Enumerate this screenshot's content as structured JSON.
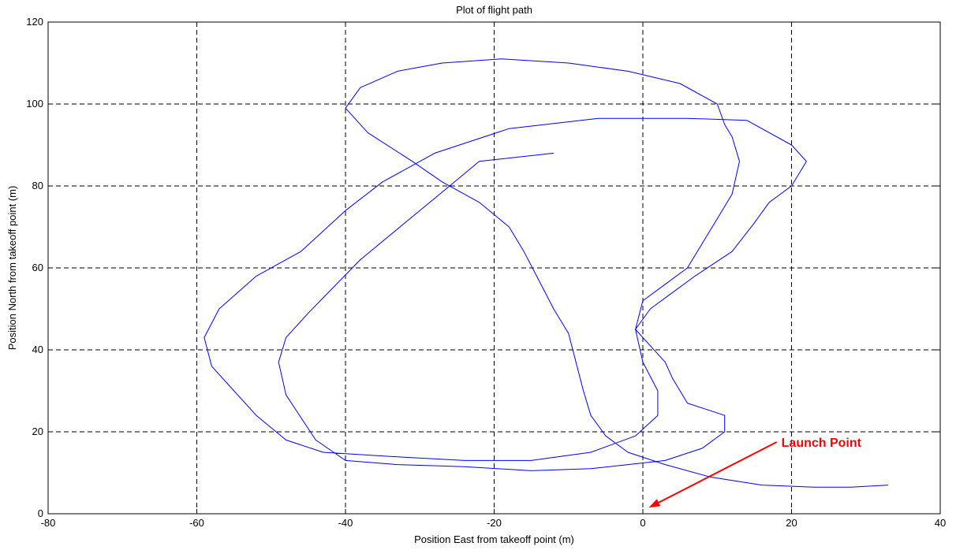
{
  "chart_data": {
    "type": "line",
    "title": "Plot of flight path",
    "xlabel": "Position East from takeoff point (m)",
    "ylabel": "Position North from takeoff point (m)",
    "xlim": [
      -80,
      40
    ],
    "ylim": [
      0,
      120
    ],
    "xticks": [
      -80,
      -60,
      -40,
      -20,
      0,
      20,
      40
    ],
    "yticks": [
      0,
      20,
      40,
      60,
      80,
      100,
      120
    ],
    "grid": true,
    "line_color": "#0000ff",
    "series": [
      {
        "points": [
          [
            -12,
            88
          ],
          [
            -22,
            86
          ],
          [
            -26,
            80
          ],
          [
            -32,
            71
          ],
          [
            -38,
            62
          ],
          [
            -45,
            49
          ],
          [
            -48,
            43
          ],
          [
            -49,
            37
          ],
          [
            -48,
            29
          ],
          [
            -44,
            18
          ],
          [
            -40,
            13
          ],
          [
            -33,
            12
          ],
          [
            -24,
            11.5
          ],
          [
            -15,
            10.5
          ],
          [
            -7,
            11
          ],
          [
            -2,
            12
          ],
          [
            3,
            13
          ],
          [
            8,
            16
          ],
          [
            11,
            20
          ],
          [
            11,
            24
          ],
          [
            6,
            27
          ],
          [
            4,
            33
          ],
          [
            3,
            37
          ],
          [
            1,
            41
          ],
          [
            -1,
            45
          ],
          [
            1,
            50
          ],
          [
            4,
            54
          ],
          [
            7,
            58
          ],
          [
            12,
            64
          ],
          [
            15,
            71
          ],
          [
            17,
            76
          ],
          [
            20,
            80
          ],
          [
            22,
            86
          ],
          [
            20,
            90
          ],
          [
            14,
            96
          ],
          [
            6,
            96.5
          ],
          [
            -6,
            96.5
          ],
          [
            -18,
            94
          ],
          [
            -28,
            88
          ],
          [
            -35,
            81
          ],
          [
            -40,
            74
          ],
          [
            -46,
            64
          ],
          [
            -52,
            58
          ],
          [
            -57,
            50
          ],
          [
            -59,
            43
          ],
          [
            -58,
            36
          ],
          [
            -55,
            30
          ],
          [
            -52,
            24
          ],
          [
            -48,
            18
          ],
          [
            -43,
            15
          ],
          [
            -34,
            14
          ],
          [
            -24,
            13
          ],
          [
            -15,
            13
          ],
          [
            -7,
            15
          ],
          [
            -1,
            19
          ],
          [
            2,
            24
          ],
          [
            2,
            30
          ],
          [
            0,
            37
          ],
          [
            -1,
            45
          ],
          [
            0,
            52
          ],
          [
            3,
            56
          ],
          [
            6,
            60
          ],
          [
            8,
            66
          ],
          [
            10,
            72
          ],
          [
            12,
            78
          ],
          [
            13,
            86
          ],
          [
            12,
            92
          ],
          [
            11,
            95
          ],
          [
            10,
            100
          ],
          [
            5,
            105
          ],
          [
            -2,
            108
          ],
          [
            -10,
            110
          ],
          [
            -19,
            111
          ],
          [
            -27,
            110
          ],
          [
            -33,
            108
          ],
          [
            -38,
            104
          ],
          [
            -40,
            99
          ],
          [
            -37,
            93
          ],
          [
            -31,
            86
          ],
          [
            -27,
            81
          ],
          [
            -22,
            76
          ],
          [
            -18,
            70
          ],
          [
            -16,
            64
          ],
          [
            -14,
            57
          ],
          [
            -12,
            50
          ],
          [
            -10,
            44
          ],
          [
            -9,
            37
          ],
          [
            -8,
            30
          ],
          [
            -7,
            24
          ],
          [
            -5,
            19
          ],
          [
            -2,
            15
          ],
          [
            3,
            12
          ],
          [
            9,
            9
          ],
          [
            16,
            7
          ],
          [
            23,
            6.5
          ],
          [
            28,
            6.5
          ],
          [
            33,
            7
          ]
        ]
      }
    ],
    "annotation": {
      "text": "Launch Point",
      "color": "#ff0000",
      "arrow_from": [
        18,
        17.5
      ],
      "arrow_to": [
        0.8,
        1.5
      ]
    }
  }
}
